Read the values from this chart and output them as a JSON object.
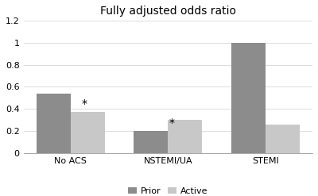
{
  "title": "Fully adjusted odds ratio",
  "categories": [
    "No ACS",
    "NSTEMI/UA",
    "STEMI"
  ],
  "series": {
    "Prior": [
      0.54,
      0.2,
      1.0
    ],
    "Active": [
      0.37,
      0.3,
      0.26
    ]
  },
  "colors": {
    "Prior": "#8c8c8c",
    "Active": "#c8c8c8"
  },
  "ylim": [
    0,
    1.2
  ],
  "yticks": [
    0,
    0.2,
    0.4,
    0.6,
    0.8,
    1.0,
    1.2
  ],
  "ytick_labels": [
    "0",
    "0.2",
    "0.4",
    "0.6",
    "0.8",
    "1",
    "1.2"
  ],
  "legend_labels": [
    "Prior",
    "Active"
  ],
  "asterisks": [
    {
      "group": 0,
      "series": "Active",
      "text": "*"
    },
    {
      "group": 1,
      "series": "Prior",
      "text": "*"
    }
  ],
  "bar_width": 0.35,
  "title_fontsize": 10,
  "tick_fontsize": 8,
  "legend_fontsize": 8
}
